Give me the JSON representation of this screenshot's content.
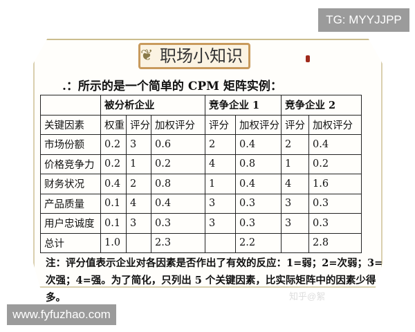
{
  "watermarks": {
    "top": "TG: MYYJJPP",
    "bottom": "www.fyfuzhao.com"
  },
  "title": "职场小知识",
  "intro": ".：所示的是一个简单的 CPM 矩阵实例：",
  "table": {
    "groups": [
      "被分析企业",
      "竞争企业 1",
      "竞争企业 2"
    ],
    "headers": [
      "关键因素",
      "权重",
      "评分",
      "加权评分",
      "评分",
      "加权评分",
      "评分",
      "加权评分"
    ],
    "rows": [
      [
        "市场份额",
        "0.2",
        "3",
        "0.6",
        "2",
        "0.4",
        "2",
        "0.4"
      ],
      [
        "价格竞争力",
        "0.2",
        "1",
        "0.2",
        "4",
        "0.8",
        "1",
        "0.2"
      ],
      [
        "财务状况",
        "0.4",
        "2",
        "0.8",
        "1",
        "0.4",
        "4",
        "1.6"
      ],
      [
        "产品质量",
        "0.1",
        "4",
        "0.4",
        "3",
        "0.3",
        "3",
        "0.3"
      ],
      [
        "用户忠诚度",
        "0.1",
        "3",
        "0.3",
        "3",
        "0.3",
        "3",
        "0.3"
      ],
      [
        "总计",
        "1.0",
        "",
        "2.3",
        "",
        "2.2",
        "",
        "2.8"
      ]
    ]
  },
  "note": "注：评分值表示企业对各因素是否作出了有效的反应：1=弱；2=次弱；3=次强；4=强。为了简化，只列出 5 个关键因素，比实际矩阵中的因素少得多。"
}
